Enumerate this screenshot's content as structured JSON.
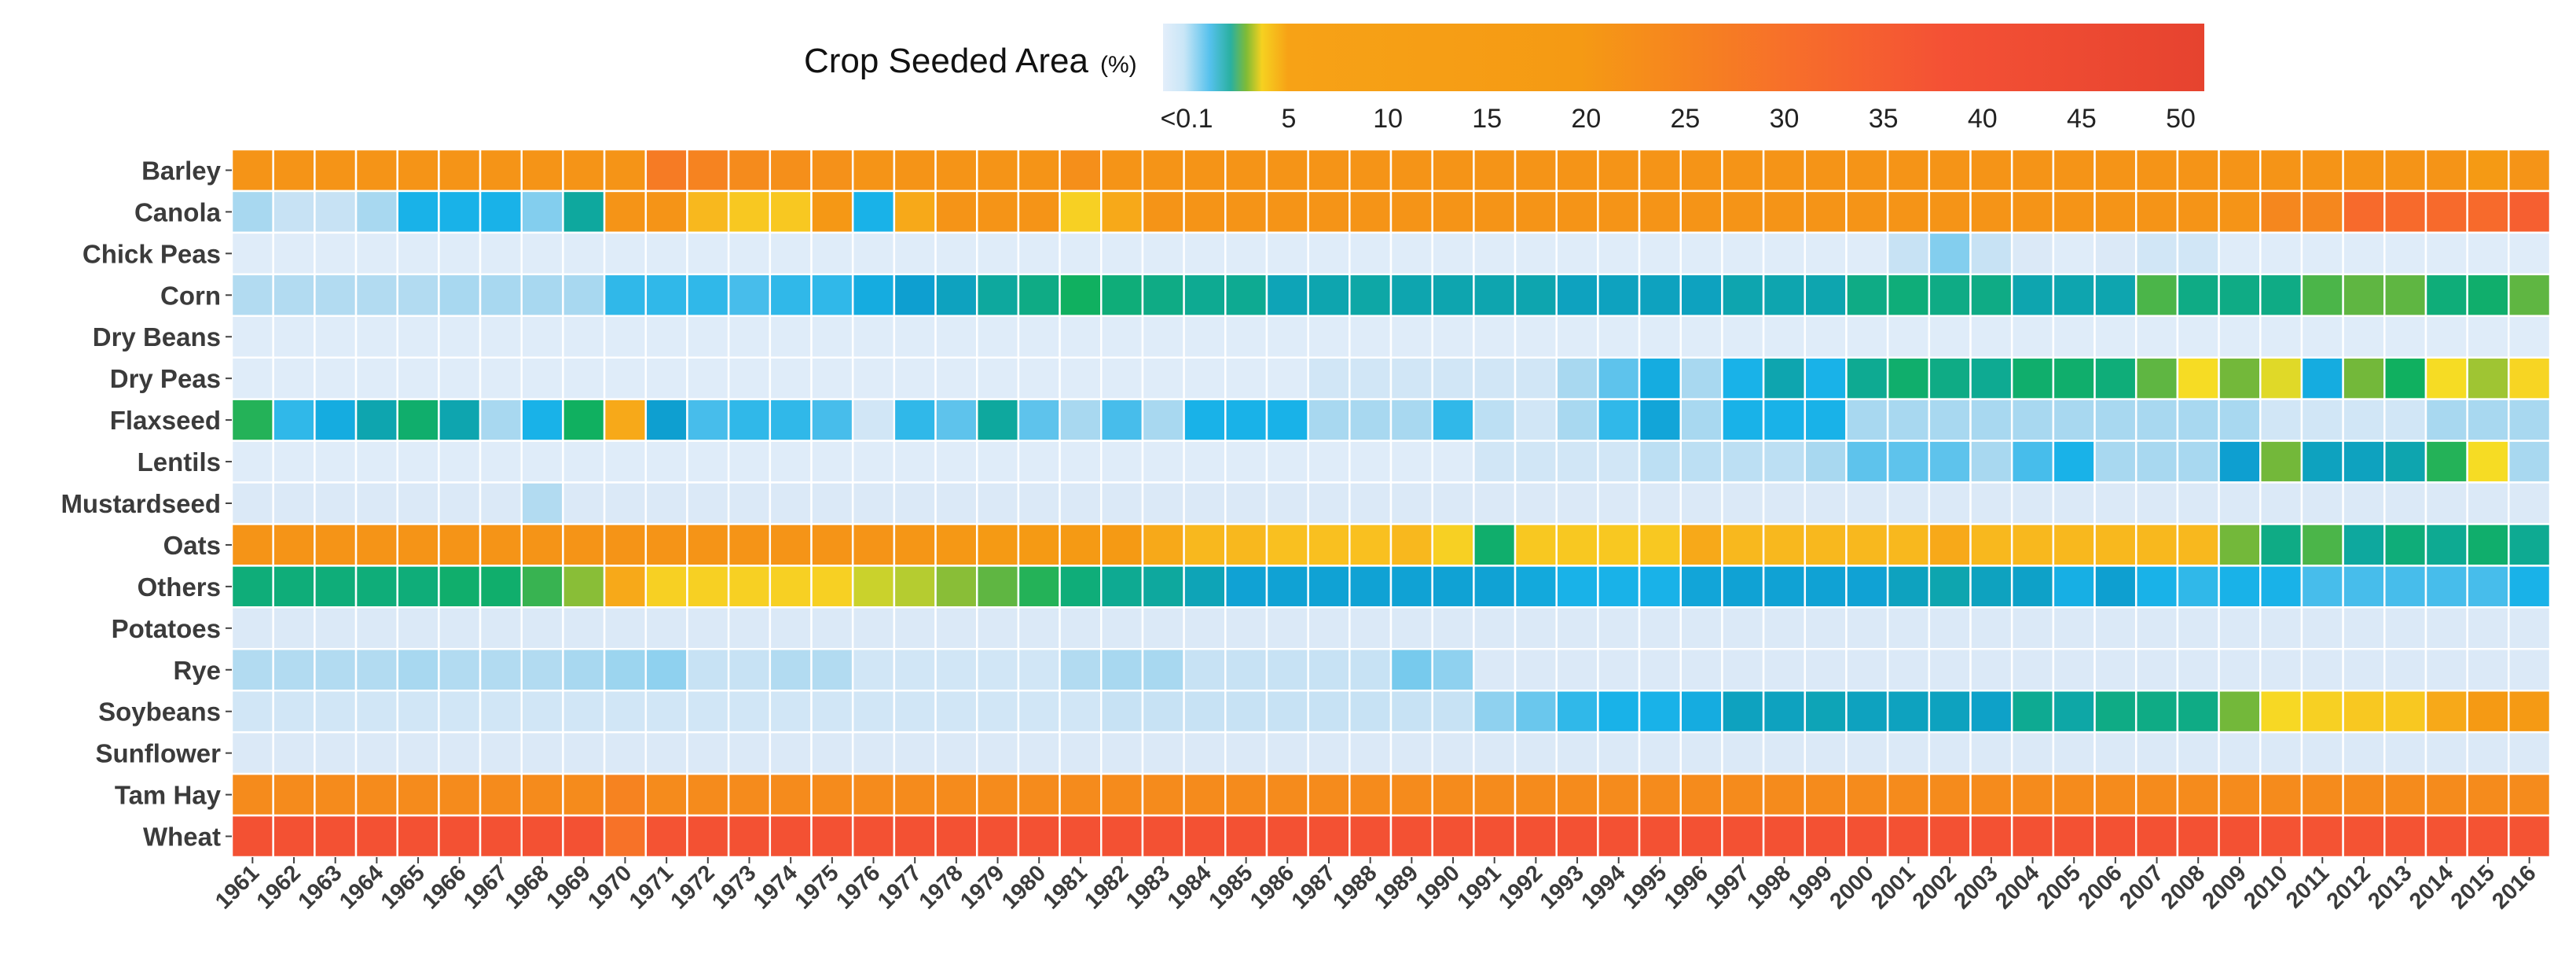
{
  "chart_data": {
    "type": "heatmap",
    "legend_title": "Crop Seeded Area",
    "legend_unit": "(%)",
    "legend_ticks": [
      "<0.1",
      "5",
      "10",
      "15",
      "20",
      "25",
      "30",
      "35",
      "40",
      "45",
      "50"
    ],
    "legend_tick_values": [
      0.1,
      5,
      10,
      15,
      20,
      25,
      30,
      35,
      40,
      45,
      50
    ],
    "color_scale": [
      {
        "v": 0,
        "c": "#e3eefa"
      },
      {
        "v": 0.1,
        "c": "#dbe9f7"
      },
      {
        "v": 0.6,
        "c": "#a8d8f0"
      },
      {
        "v": 1.2,
        "c": "#5ec3ec"
      },
      {
        "v": 1.8,
        "c": "#19b2e8"
      },
      {
        "v": 2.4,
        "c": "#0e9fd0"
      },
      {
        "v": 3.0,
        "c": "#0ea89e"
      },
      {
        "v": 3.5,
        "c": "#10b060"
      },
      {
        "v": 4.0,
        "c": "#73b83a"
      },
      {
        "v": 4.6,
        "c": "#f6df25"
      },
      {
        "v": 6.5,
        "c": "#f9c020"
      },
      {
        "v": 9.0,
        "c": "#f59a14"
      },
      {
        "v": 16,
        "c": "#f58b1c"
      },
      {
        "v": 24,
        "c": "#f76a2c"
      },
      {
        "v": 32,
        "c": "#f45333"
      },
      {
        "v": 50,
        "c": "#e8432f"
      }
    ],
    "x_label": "",
    "y_label": "",
    "x": [
      "1961",
      "1962",
      "1963",
      "1964",
      "1965",
      "1966",
      "1967",
      "1968",
      "1969",
      "1970",
      "1971",
      "1972",
      "1973",
      "1974",
      "1975",
      "1976",
      "1977",
      "1978",
      "1979",
      "1980",
      "1981",
      "1982",
      "1983",
      "1984",
      "1985",
      "1986",
      "1987",
      "1988",
      "1989",
      "1990",
      "1991",
      "1992",
      "1993",
      "1994",
      "1995",
      "1996",
      "1997",
      "1998",
      "1999",
      "2000",
      "2001",
      "2002",
      "2003",
      "2004",
      "2005",
      "2006",
      "2007",
      "2008",
      "2009",
      "2010",
      "2011",
      "2012",
      "2013",
      "2014",
      "2015",
      "2016"
    ],
    "y": [
      "Barley",
      "Canola",
      "Chick Peas",
      "Corn",
      "Dry Beans",
      "Dry Peas",
      "Flaxseed",
      "Lentils",
      "Mustardseed",
      "Oats",
      "Others",
      "Potatoes",
      "Rye",
      "Soybeans",
      "Sunflower",
      "Tam Hay",
      "Wheat"
    ],
    "values": {
      "Barley": [
        12,
        12,
        12,
        12,
        12,
        12,
        12,
        12,
        12,
        12,
        20,
        18,
        16,
        14,
        13,
        12,
        12,
        12,
        12,
        12,
        14,
        12,
        12,
        12,
        12,
        12,
        12,
        12,
        12,
        12,
        12,
        12,
        12,
        12,
        12,
        12,
        12,
        12,
        12,
        12,
        12,
        12,
        12,
        12,
        12,
        12,
        12,
        12,
        12,
        12,
        12,
        12,
        12,
        12,
        9,
        12
      ],
      "Canola": [
        0.6,
        0.3,
        0.3,
        0.6,
        1.8,
        1.8,
        1.8,
        0.9,
        3.0,
        12,
        12,
        7,
        6,
        6,
        10,
        1.8,
        8,
        12,
        12,
        12,
        5.5,
        8,
        12,
        12,
        12,
        12,
        12,
        12,
        12,
        12,
        12,
        12,
        12,
        12,
        12,
        12,
        12,
        12,
        12,
        12,
        12,
        12,
        12,
        12,
        12,
        12,
        12,
        12,
        12,
        17,
        17,
        24,
        24,
        24,
        24,
        28
      ],
      "Chick Peas": [
        0.05,
        0.05,
        0.05,
        0.05,
        0.05,
        0.05,
        0.05,
        0.05,
        0.05,
        0.05,
        0.05,
        0.05,
        0.05,
        0.05,
        0.05,
        0.05,
        0.05,
        0.05,
        0.05,
        0.05,
        0.05,
        0.05,
        0.05,
        0.05,
        0.05,
        0.05,
        0.05,
        0.05,
        0.05,
        0.05,
        0.05,
        0.05,
        0.05,
        0.05,
        0.05,
        0.05,
        0.05,
        0.05,
        0.05,
        0.05,
        0.3,
        0.9,
        0.3,
        0.1,
        0.05,
        0.1,
        0.2,
        0.2,
        0.05,
        0.05,
        0.05,
        0.05,
        0.05,
        0.05,
        0.05,
        0.05
      ],
      "Corn": [
        0.5,
        0.5,
        0.5,
        0.5,
        0.5,
        0.6,
        0.6,
        0.6,
        0.6,
        1.6,
        1.6,
        1.6,
        1.4,
        1.6,
        1.6,
        2.0,
        2.4,
        2.6,
        3.0,
        3.2,
        3.5,
        3.3,
        3.2,
        3.1,
        3.1,
        2.7,
        2.8,
        2.9,
        2.8,
        2.8,
        2.8,
        2.8,
        2.6,
        2.6,
        2.6,
        2.6,
        2.8,
        2.8,
        2.8,
        3.2,
        3.3,
        3.2,
        3.2,
        2.8,
        2.8,
        2.8,
        3.8,
        3.2,
        3.2,
        3.2,
        3.8,
        3.9,
        3.9,
        3.3,
        3.4,
        3.9
      ],
      "Dry Beans": [
        0.05,
        0.05,
        0.05,
        0.05,
        0.05,
        0.05,
        0.05,
        0.05,
        0.05,
        0.05,
        0.05,
        0.05,
        0.05,
        0.05,
        0.05,
        0.05,
        0.05,
        0.05,
        0.05,
        0.05,
        0.05,
        0.05,
        0.05,
        0.05,
        0.05,
        0.05,
        0.05,
        0.05,
        0.05,
        0.05,
        0.05,
        0.05,
        0.05,
        0.05,
        0.05,
        0.05,
        0.05,
        0.05,
        0.05,
        0.05,
        0.05,
        0.05,
        0.05,
        0.05,
        0.05,
        0.05,
        0.05,
        0.05,
        0.05,
        0.05,
        0.05,
        0.05,
        0.05,
        0.05,
        0.05,
        0.05
      ],
      "Dry Peas": [
        0.05,
        0.05,
        0.05,
        0.05,
        0.05,
        0.05,
        0.05,
        0.05,
        0.05,
        0.05,
        0.05,
        0.05,
        0.05,
        0.05,
        0.05,
        0.05,
        0.05,
        0.05,
        0.05,
        0.05,
        0.05,
        0.05,
        0.05,
        0.05,
        0.05,
        0.05,
        0.2,
        0.2,
        0.2,
        0.2,
        0.2,
        0.2,
        0.6,
        1.2,
        2.0,
        0.6,
        1.8,
        2.8,
        1.8,
        3.1,
        3.4,
        3.2,
        3.1,
        3.4,
        3.4,
        3.3,
        3.9,
        4.8,
        4.0,
        4.5,
        2.0,
        4.0,
        3.5,
        4.8,
        4.2,
        5.2
      ],
      "Flaxseed": [
        3.6,
        1.6,
        2.0,
        2.8,
        3.4,
        2.8,
        0.6,
        1.8,
        3.5,
        8,
        2.4,
        1.4,
        1.6,
        1.6,
        1.4,
        0.2,
        1.6,
        1.2,
        3.0,
        1.2,
        0.6,
        1.4,
        0.6,
        1.8,
        1.8,
        1.8,
        0.6,
        0.6,
        0.6,
        1.6,
        0.4,
        0.2,
        0.6,
        1.6,
        2.2,
        0.6,
        1.8,
        1.8,
        1.8,
        0.6,
        0.6,
        0.6,
        0.6,
        0.6,
        0.6,
        0.6,
        0.6,
        0.6,
        0.6,
        0.2,
        0.2,
        0.2,
        0.2,
        0.6,
        0.6,
        0.6
      ],
      "Lentils": [
        0.05,
        0.05,
        0.05,
        0.05,
        0.05,
        0.05,
        0.05,
        0.05,
        0.05,
        0.05,
        0.05,
        0.05,
        0.05,
        0.05,
        0.05,
        0.05,
        0.05,
        0.05,
        0.05,
        0.05,
        0.05,
        0.05,
        0.05,
        0.05,
        0.05,
        0.05,
        0.05,
        0.05,
        0.05,
        0.05,
        0.2,
        0.2,
        0.2,
        0.2,
        0.4,
        0.4,
        0.4,
        0.4,
        0.6,
        1.2,
        1.2,
        1.2,
        0.6,
        1.4,
        1.8,
        0.6,
        0.6,
        0.6,
        2.4,
        4.0,
        2.6,
        2.6,
        2.8,
        3.6,
        4.8,
        0.6
      ],
      "Mustardseed": [
        0.1,
        0.1,
        0.1,
        0.1,
        0.1,
        0.1,
        0.1,
        0.5,
        0.1,
        0.1,
        0.1,
        0.1,
        0.1,
        0.1,
        0.1,
        0.1,
        0.1,
        0.1,
        0.1,
        0.1,
        0.1,
        0.1,
        0.1,
        0.1,
        0.1,
        0.1,
        0.1,
        0.1,
        0.1,
        0.1,
        0.1,
        0.1,
        0.1,
        0.1,
        0.1,
        0.1,
        0.1,
        0.1,
        0.1,
        0.1,
        0.1,
        0.1,
        0.1,
        0.1,
        0.1,
        0.1,
        0.1,
        0.1,
        0.1,
        0.1,
        0.1,
        0.1,
        0.1,
        0.1,
        0.1,
        0.1
      ],
      "Oats": [
        12,
        12,
        12,
        12,
        12,
        12,
        12,
        12,
        12,
        12,
        12,
        12,
        12,
        12,
        12,
        12,
        11,
        10,
        9,
        9,
        9,
        9,
        8,
        7,
        7,
        6.5,
        6.5,
        6.5,
        7,
        5.5,
        3.4,
        6,
        6,
        6,
        6,
        8,
        7,
        7,
        7,
        7,
        7,
        8,
        7,
        7,
        7,
        7,
        7,
        7,
        4.0,
        3.2,
        3.8,
        3.0,
        3.3,
        3.1,
        3.4,
        3.1
      ],
      "Others": [
        3.3,
        3.3,
        3.3,
        3.3,
        3.3,
        3.4,
        3.4,
        3.7,
        4.1,
        8,
        5.5,
        5.5,
        5.5,
        5.5,
        5.5,
        4.4,
        4.3,
        4.1,
        3.9,
        3.6,
        3.3,
        3.1,
        3.0,
        2.7,
        2.3,
        2.3,
        2.3,
        2.3,
        2.3,
        2.3,
        2.3,
        2.1,
        1.8,
        1.8,
        1.8,
        2.2,
        2.3,
        2.3,
        2.3,
        2.3,
        2.6,
        2.8,
        2.6,
        2.5,
        1.9,
        2.4,
        1.8,
        1.6,
        1.8,
        1.8,
        1.4,
        1.4,
        1.4,
        1.4,
        1.4,
        1.8
      ],
      "Potatoes": [
        0.1,
        0.1,
        0.1,
        0.1,
        0.1,
        0.1,
        0.1,
        0.1,
        0.1,
        0.1,
        0.1,
        0.1,
        0.1,
        0.1,
        0.1,
        0.1,
        0.1,
        0.1,
        0.1,
        0.1,
        0.1,
        0.1,
        0.1,
        0.1,
        0.1,
        0.1,
        0.1,
        0.1,
        0.1,
        0.1,
        0.1,
        0.1,
        0.1,
        0.1,
        0.1,
        0.1,
        0.1,
        0.1,
        0.1,
        0.1,
        0.1,
        0.1,
        0.1,
        0.1,
        0.1,
        0.1,
        0.1,
        0.1,
        0.1,
        0.1,
        0.1,
        0.1,
        0.1,
        0.1,
        0.1,
        0.1
      ],
      "Rye": [
        0.5,
        0.5,
        0.5,
        0.5,
        0.6,
        0.5,
        0.5,
        0.5,
        0.6,
        0.7,
        0.8,
        0.3,
        0.3,
        0.5,
        0.5,
        0.2,
        0.2,
        0.2,
        0.2,
        0.2,
        0.5,
        0.6,
        0.6,
        0.3,
        0.3,
        0.3,
        0.3,
        0.3,
        1.0,
        0.8,
        0.1,
        0.1,
        0.1,
        0.1,
        0.1,
        0.1,
        0.1,
        0.1,
        0.1,
        0.1,
        0.1,
        0.1,
        0.1,
        0.1,
        0.1,
        0.1,
        0.1,
        0.1,
        0.1,
        0.1,
        0.1,
        0.1,
        0.1,
        0.1,
        0.1,
        0.1
      ],
      "Soybeans": [
        0.2,
        0.2,
        0.2,
        0.2,
        0.2,
        0.2,
        0.2,
        0.2,
        0.2,
        0.2,
        0.2,
        0.2,
        0.2,
        0.2,
        0.2,
        0.2,
        0.2,
        0.2,
        0.2,
        0.2,
        0.2,
        0.3,
        0.3,
        0.3,
        0.3,
        0.3,
        0.3,
        0.3,
        0.3,
        0.3,
        0.8,
        1.1,
        1.6,
        1.8,
        1.8,
        2.0,
        2.6,
        2.6,
        2.7,
        2.6,
        2.6,
        2.6,
        2.5,
        3.1,
        2.9,
        3.2,
        3.2,
        3.2,
        4.0,
        5.0,
        5.5,
        6,
        6,
        8,
        9,
        9
      ],
      "Sunflower": [
        0.1,
        0.1,
        0.1,
        0.1,
        0.1,
        0.1,
        0.1,
        0.1,
        0.1,
        0.1,
        0.1,
        0.1,
        0.1,
        0.1,
        0.1,
        0.1,
        0.1,
        0.1,
        0.1,
        0.1,
        0.1,
        0.1,
        0.1,
        0.1,
        0.1,
        0.1,
        0.1,
        0.1,
        0.1,
        0.1,
        0.1,
        0.1,
        0.1,
        0.1,
        0.1,
        0.1,
        0.1,
        0.1,
        0.1,
        0.1,
        0.1,
        0.1,
        0.1,
        0.1,
        0.1,
        0.1,
        0.1,
        0.1,
        0.1,
        0.1,
        0.1,
        0.1,
        0.1,
        0.1,
        0.1,
        0.1
      ],
      "Tam Hay": [
        16,
        16,
        16,
        16,
        16,
        16,
        16,
        16,
        16,
        18,
        16,
        16,
        16,
        16,
        16,
        16,
        16,
        16,
        16,
        16,
        16,
        16,
        16,
        16,
        16,
        16,
        16,
        16,
        16,
        16,
        16,
        16,
        16,
        16,
        16,
        16,
        16,
        16,
        16,
        16,
        16,
        16,
        16,
        16,
        16,
        16,
        16,
        16,
        16,
        16,
        16,
        16,
        16,
        16,
        16,
        16
      ],
      "Wheat": [
        34,
        34,
        34,
        34,
        34,
        34,
        34,
        34,
        34,
        22,
        32,
        34,
        34,
        34,
        34,
        34,
        34,
        34,
        34,
        34,
        34,
        34,
        34,
        34,
        34,
        34,
        34,
        34,
        34,
        34,
        34,
        34,
        34,
        34,
        34,
        34,
        34,
        34,
        34,
        34,
        34,
        34,
        34,
        34,
        34,
        34,
        34,
        34,
        34,
        32,
        32,
        32,
        32,
        32,
        32,
        32
      ]
    }
  }
}
